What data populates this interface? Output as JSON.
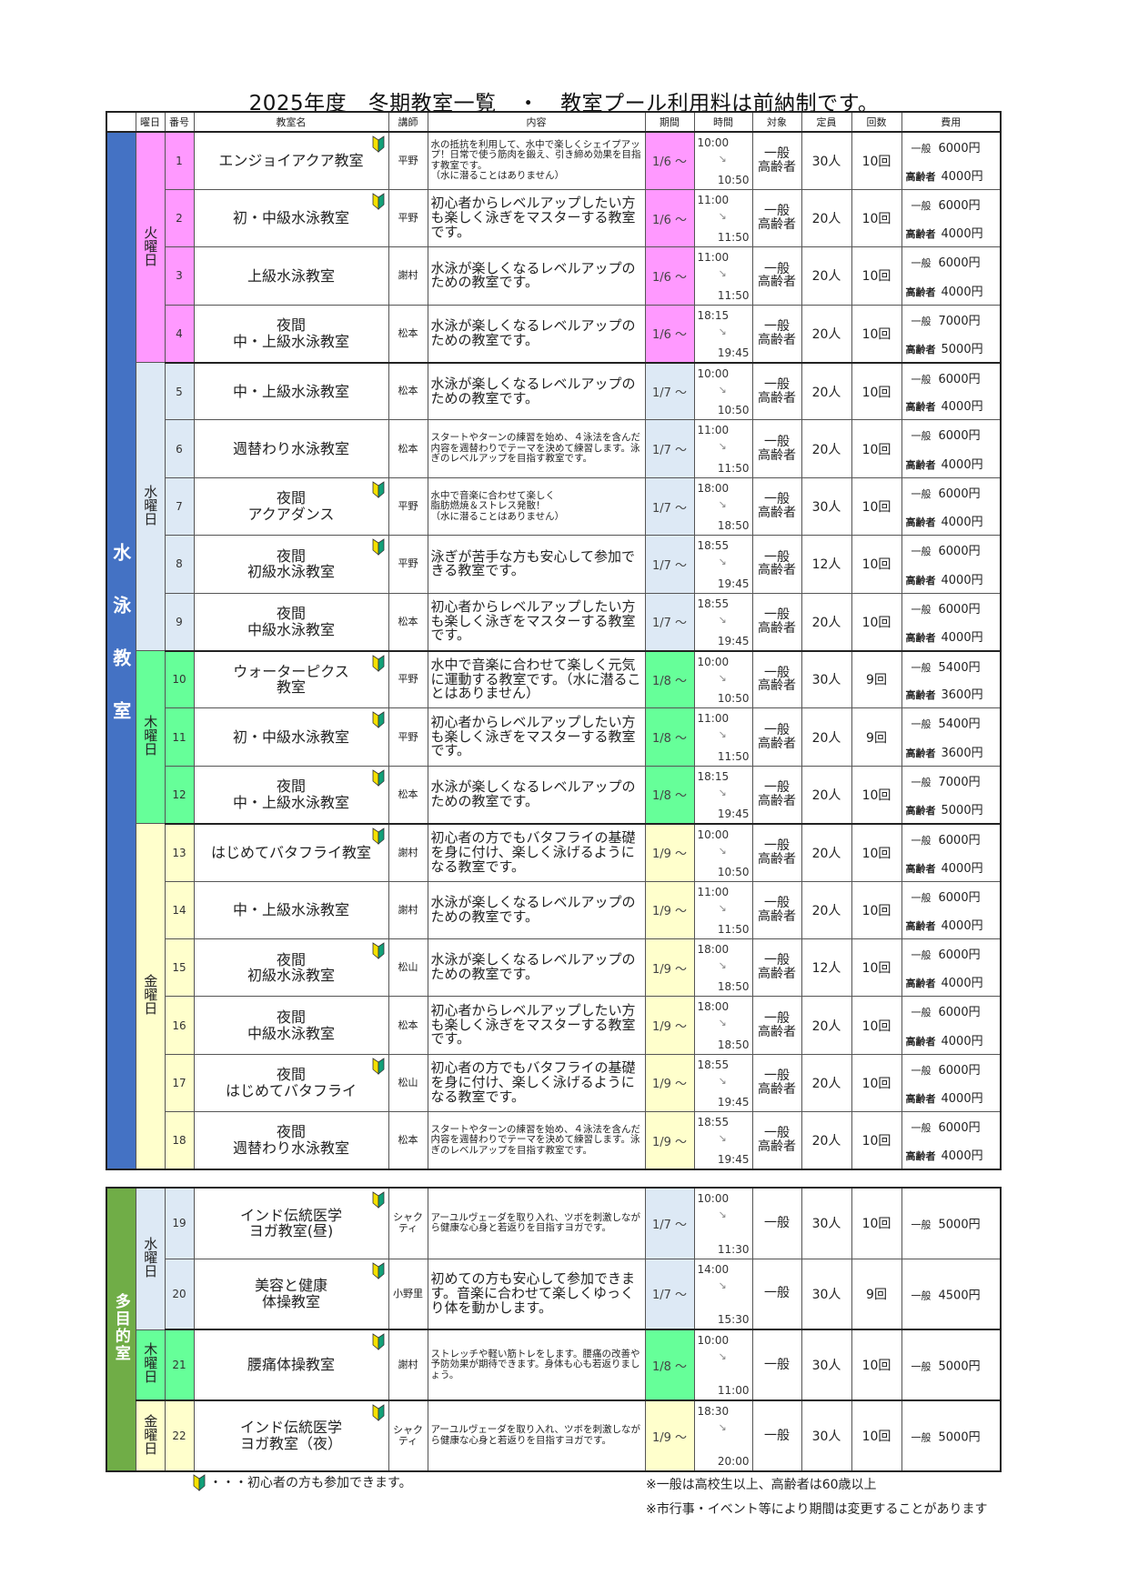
{
  "title": "2025年度　冬期教室一覧　・　教室プール利用料は前納制です。",
  "headers": [
    "曜日",
    "番号",
    "教室名",
    "講師",
    "内容",
    "期間",
    "時間",
    "対象",
    "定員",
    "回数",
    "費用"
  ],
  "colors": {
    "swim_section": "#4472c4",
    "multi_section": "#70ad47",
    "tue": "#ff99ff",
    "wed": "#dde9f5",
    "thu": "#66ff99",
    "fri": "#ffffcc",
    "beginner_yellow": "#f5e100",
    "beginner_green": "#12a079"
  },
  "sections": [
    {
      "label": "水泳教室",
      "color_key": "swim_section",
      "days": [
        {
          "label": "火曜日",
          "color_key": "tue",
          "rows": [
            {
              "no": "1",
              "name": "エンジョイアクア教室",
              "beginner": true,
              "teacher": "平野",
              "content": "水の抵抗を利用して、水中で楽しくシェイプアップ！日常で使う筋肉を鍛え、引き締め効果を目指す教室です。\n（水に潜ることはありません）",
              "period": "1/6 ～",
              "start": "10:00",
              "end": "10:50",
              "target": [
                "一般",
                "高齢者"
              ],
              "capacity": "30人",
              "count": "10回",
              "fees": [
                {
                  "label": "一般",
                  "amount": "6000円"
                },
                {
                  "label": "高齢者",
                  "amount": "4000円"
                }
              ]
            },
            {
              "no": "2",
              "name": "初・中級水泳教室",
              "beginner": true,
              "teacher": "平野",
              "content": "初心者からレベルアップしたい方も楽しく泳ぎをマスターする教室です。",
              "period": "1/6 ～",
              "start": "11:00",
              "end": "11:50",
              "target": [
                "一般",
                "高齢者"
              ],
              "capacity": "20人",
              "count": "10回",
              "fees": [
                {
                  "label": "一般",
                  "amount": "6000円"
                },
                {
                  "label": "高齢者",
                  "amount": "4000円"
                }
              ]
            },
            {
              "no": "3",
              "name": "上級水泳教室",
              "beginner": false,
              "teacher": "謝村",
              "content": "水泳が楽しくなるレベルアップのための教室です。",
              "period": "1/6 ～",
              "start": "11:00",
              "end": "11:50",
              "target": [
                "一般",
                "高齢者"
              ],
              "capacity": "20人",
              "count": "10回",
              "fees": [
                {
                  "label": "一般",
                  "amount": "6000円"
                },
                {
                  "label": "高齢者",
                  "amount": "4000円"
                }
              ]
            },
            {
              "no": "4",
              "name": "夜間\n中・上級水泳教室",
              "beginner": false,
              "teacher": "松本",
              "content": "水泳が楽しくなるレベルアップのための教室です。",
              "period": "1/6 ～",
              "start": "18:15",
              "end": "19:45",
              "target": [
                "一般",
                "高齢者"
              ],
              "capacity": "20人",
              "count": "10回",
              "fees": [
                {
                  "label": "一般",
                  "amount": "7000円"
                },
                {
                  "label": "高齢者",
                  "amount": "5000円"
                }
              ]
            }
          ]
        },
        {
          "label": "水曜日",
          "color_key": "wed",
          "rows": [
            {
              "no": "5",
              "name": "中・上級水泳教室",
              "beginner": false,
              "teacher": "松本",
              "content": "水泳が楽しくなるレベルアップのための教室です。",
              "period": "1/7 ～",
              "start": "10:00",
              "end": "10:50",
              "target": [
                "一般",
                "高齢者"
              ],
              "capacity": "20人",
              "count": "10回",
              "fees": [
                {
                  "label": "一般",
                  "amount": "6000円"
                },
                {
                  "label": "高齢者",
                  "amount": "4000円"
                }
              ]
            },
            {
              "no": "6",
              "name": "週替わり水泳教室",
              "beginner": false,
              "teacher": "松本",
              "content": "スタートやターンの練習を始め、４泳法を含んだ内容を週替わりでテーマを決めて練習します。泳ぎのレベルアップを目指す教室です。",
              "period": "1/7 ～",
              "start": "11:00",
              "end": "11:50",
              "target": [
                "一般",
                "高齢者"
              ],
              "capacity": "20人",
              "count": "10回",
              "fees": [
                {
                  "label": "一般",
                  "amount": "6000円"
                },
                {
                  "label": "高齢者",
                  "amount": "4000円"
                }
              ]
            },
            {
              "no": "7",
              "name": "夜間\nアクアダンス",
              "beginner": true,
              "teacher": "平野",
              "content": "水中で音楽に合わせて楽しく\n脂肪燃焼＆ストレス発散！\n（水に潜ることはありません）",
              "period": "1/7 ～",
              "start": "18:00",
              "end": "18:50",
              "target": [
                "一般",
                "高齢者"
              ],
              "capacity": "30人",
              "count": "10回",
              "fees": [
                {
                  "label": "一般",
                  "amount": "6000円"
                },
                {
                  "label": "高齢者",
                  "amount": "4000円"
                }
              ]
            },
            {
              "no": "8",
              "name": "夜間\n初級水泳教室",
              "beginner": true,
              "teacher": "平野",
              "content": "泳ぎが苦手な方も安心して参加できる教室です。",
              "period": "1/7 ～",
              "start": "18:55",
              "end": "19:45",
              "target": [
                "一般",
                "高齢者"
              ],
              "capacity": "12人",
              "count": "10回",
              "fees": [
                {
                  "label": "一般",
                  "amount": "6000円"
                },
                {
                  "label": "高齢者",
                  "amount": "4000円"
                }
              ]
            },
            {
              "no": "9",
              "name": "夜間\n中級水泳教室",
              "beginner": false,
              "teacher": "松本",
              "content": "初心者からレベルアップしたい方も楽しく泳ぎをマスターする教室です。",
              "period": "1/7 ～",
              "start": "18:55",
              "end": "19:45",
              "target": [
                "一般",
                "高齢者"
              ],
              "capacity": "20人",
              "count": "10回",
              "fees": [
                {
                  "label": "一般",
                  "amount": "6000円"
                },
                {
                  "label": "高齢者",
                  "amount": "4000円"
                }
              ]
            }
          ]
        },
        {
          "label": "木曜日",
          "color_key": "thu",
          "rows": [
            {
              "no": "10",
              "name": "ウォーターピクス\n教室",
              "beginner": true,
              "teacher": "平野",
              "content": "水中で音楽に合わせて楽しく元気に運動する教室です。（水に潜ることはありません）",
              "period": "1/8 ～",
              "start": "10:00",
              "end": "10:50",
              "target": [
                "一般",
                "高齢者"
              ],
              "capacity": "30人",
              "count": "9回",
              "fees": [
                {
                  "label": "一般",
                  "amount": "5400円"
                },
                {
                  "label": "高齢者",
                  "amount": "3600円"
                }
              ]
            },
            {
              "no": "11",
              "name": "初・中級水泳教室",
              "beginner": true,
              "teacher": "平野",
              "content": "初心者からレベルアップしたい方も楽しく泳ぎをマスターする教室です。",
              "period": "1/8 ～",
              "start": "11:00",
              "end": "11:50",
              "target": [
                "一般",
                "高齢者"
              ],
              "capacity": "20人",
              "count": "9回",
              "fees": [
                {
                  "label": "一般",
                  "amount": "5400円"
                },
                {
                  "label": "高齢者",
                  "amount": "3600円"
                }
              ]
            },
            {
              "no": "12",
              "name": "夜間\n中・上級水泳教室",
              "beginner": true,
              "teacher": "松本",
              "content": "水泳が楽しくなるレベルアップのための教室です。",
              "period": "1/8 ～",
              "start": "18:15",
              "end": "19:45",
              "target": [
                "一般",
                "高齢者"
              ],
              "capacity": "20人",
              "count": "10回",
              "fees": [
                {
                  "label": "一般",
                  "amount": "7000円"
                },
                {
                  "label": "高齢者",
                  "amount": "5000円"
                }
              ]
            }
          ]
        },
        {
          "label": "金曜日",
          "color_key": "fri",
          "rows": [
            {
              "no": "13",
              "name": "はじめてバタフライ教室",
              "beginner": true,
              "teacher": "謝村",
              "content": "初心者の方でもバタフライの基礎を身に付け、楽しく泳げるようになる教室です。",
              "period": "1/9 ～",
              "start": "10:00",
              "end": "10:50",
              "target": [
                "一般",
                "高齢者"
              ],
              "capacity": "20人",
              "count": "10回",
              "fees": [
                {
                  "label": "一般",
                  "amount": "6000円"
                },
                {
                  "label": "高齢者",
                  "amount": "4000円"
                }
              ]
            },
            {
              "no": "14",
              "name": "中・上級水泳教室",
              "beginner": false,
              "teacher": "謝村",
              "content": "水泳が楽しくなるレベルアップのための教室です。",
              "period": "1/9 ～",
              "start": "11:00",
              "end": "11:50",
              "target": [
                "一般",
                "高齢者"
              ],
              "capacity": "20人",
              "count": "10回",
              "fees": [
                {
                  "label": "一般",
                  "amount": "6000円"
                },
                {
                  "label": "高齢者",
                  "amount": "4000円"
                }
              ]
            },
            {
              "no": "15",
              "name": "夜間\n初級水泳教室",
              "beginner": true,
              "teacher": "松山",
              "content": "水泳が楽しくなるレベルアップのための教室です。",
              "period": "1/9 ～",
              "start": "18:00",
              "end": "18:50",
              "target": [
                "一般",
                "高齢者"
              ],
              "capacity": "12人",
              "count": "10回",
              "fees": [
                {
                  "label": "一般",
                  "amount": "6000円"
                },
                {
                  "label": "高齢者",
                  "amount": "4000円"
                }
              ]
            },
            {
              "no": "16",
              "name": "夜間\n中級水泳教室",
              "beginner": false,
              "teacher": "松本",
              "content": "初心者からレベルアップしたい方も楽しく泳ぎをマスターする教室です。",
              "period": "1/9 ～",
              "start": "18:00",
              "end": "18:50",
              "target": [
                "一般",
                "高齢者"
              ],
              "capacity": "20人",
              "count": "10回",
              "fees": [
                {
                  "label": "一般",
                  "amount": "6000円"
                },
                {
                  "label": "高齢者",
                  "amount": "4000円"
                }
              ]
            },
            {
              "no": "17",
              "name": "夜間\nはじめてバタフライ",
              "beginner": true,
              "teacher": "松山",
              "content": "初心者の方でもバタフライの基礎を身に付け、楽しく泳げるようになる教室です。",
              "period": "1/9 ～",
              "start": "18:55",
              "end": "19:45",
              "target": [
                "一般",
                "高齢者"
              ],
              "capacity": "20人",
              "count": "10回",
              "fees": [
                {
                  "label": "一般",
                  "amount": "6000円"
                },
                {
                  "label": "高齢者",
                  "amount": "4000円"
                }
              ]
            },
            {
              "no": "18",
              "name": "夜間\n週替わり水泳教室",
              "beginner": false,
              "teacher": "松本",
              "content": "スタートやターンの練習を始め、４泳法を含んだ内容を週替わりでテーマを決めて練習します。泳ぎのレベルアップを目指す教室です。",
              "period": "1/9 ～",
              "start": "18:55",
              "end": "19:45",
              "target": [
                "一般",
                "高齢者"
              ],
              "capacity": "20人",
              "count": "10回",
              "fees": [
                {
                  "label": "一般",
                  "amount": "6000円"
                },
                {
                  "label": "高齢者",
                  "amount": "4000円"
                }
              ]
            }
          ]
        }
      ]
    },
    {
      "label": "多目的室",
      "color_key": "multi_section",
      "days": [
        {
          "label": "水曜日",
          "color_key": "wed",
          "rows": [
            {
              "no": "19",
              "name": "インド伝統医学\nヨガ教室(昼)",
              "beginner": true,
              "teacher": "シャクティ",
              "content": "アーユルヴェーダを取り入れ、ツボを刺激しながら健康な心身と若返りを目指すヨガです。",
              "period": "1/7 ～",
              "start": "10:00",
              "end": "11:30",
              "target": [
                "一般"
              ],
              "capacity": "30人",
              "count": "10回",
              "fees": [
                {
                  "label": "一般",
                  "amount": "5000円"
                }
              ]
            },
            {
              "no": "20",
              "name": "美容と健康\n体操教室",
              "beginner": true,
              "teacher": "小野里",
              "content": "初めての方も安心して参加できます。音楽に合わせて楽しくゆっくり体を動かします。",
              "period": "1/7 ～",
              "start": "14:00",
              "end": "15:30",
              "target": [
                "一般"
              ],
              "capacity": "30人",
              "count": "9回",
              "fees": [
                {
                  "label": "一般",
                  "amount": "4500円"
                }
              ]
            }
          ]
        },
        {
          "label": "木曜日",
          "color_key": "thu",
          "rows": [
            {
              "no": "21",
              "name": "腰痛体操教室",
              "beginner": true,
              "teacher": "謝村",
              "content": "ストレッチや軽い筋トレをします。腰痛の改善や予防効果が期待できます。身体も心も若返りましょう。",
              "period": "1/8 ～",
              "start": "10:00",
              "end": "11:00",
              "target": [
                "一般"
              ],
              "capacity": "30人",
              "count": "10回",
              "fees": [
                {
                  "label": "一般",
                  "amount": "5000円"
                }
              ]
            }
          ]
        },
        {
          "label": "金曜日",
          "color_key": "fri",
          "rows": [
            {
              "no": "22",
              "name": "インド伝統医学\nヨガ教室（夜）",
              "beginner": true,
              "teacher": "シャクティ",
              "content": "アーユルヴェーダを取り入れ、ツボを刺激しながら健康な心身と若返りを目指すヨガです。",
              "period": "1/9 ～",
              "start": "18:30",
              "end": "20:00",
              "target": [
                "一般"
              ],
              "capacity": "30人",
              "count": "10回",
              "fees": [
                {
                  "label": "一般",
                  "amount": "5000円"
                }
              ]
            }
          ]
        }
      ]
    }
  ],
  "footer": {
    "legend": "・・・初心者の方も参加できます。",
    "note1": "※一般は高校生以上、高齢者は60歳以上",
    "note2": "※市行事・イベント等により期間は変更することがあります"
  }
}
